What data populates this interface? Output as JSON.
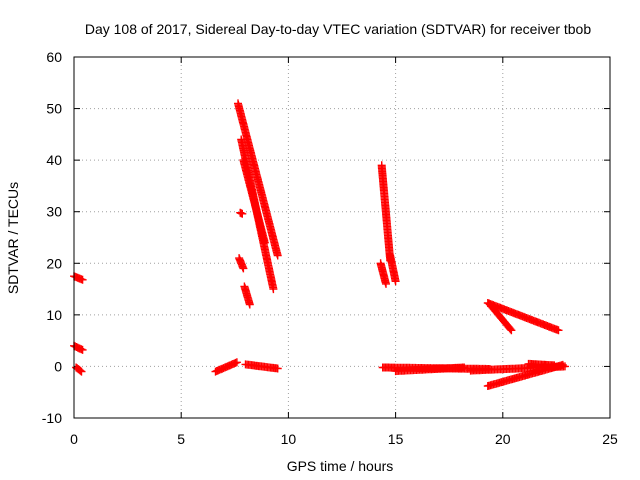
{
  "chart_data": {
    "type": "scatter",
    "title": "Day 108 of 2017, Sidereal Day-to-day VTEC variation (SDTVAR) for receiver tbob",
    "xlabel": "GPS time / hours",
    "ylabel": "SDTVAR / TECUs",
    "xlim": [
      0,
      25
    ],
    "ylim": [
      -10,
      60
    ],
    "x_ticks": [
      "0",
      "5",
      "10",
      "15",
      "20",
      "25"
    ],
    "y_ticks": [
      "-10",
      "0",
      "10",
      "20",
      "30",
      "40",
      "50",
      "60"
    ],
    "grid": true,
    "marker": "+",
    "color": "#ff0000",
    "series": [
      {
        "segments": [
          {
            "x0": 0.0,
            "x1": 0.4,
            "y0": 17.5,
            "y1": 16.8
          },
          {
            "x0": 0.0,
            "x1": 0.4,
            "y0": 4.0,
            "y1": 3.2
          },
          {
            "x0": 0.1,
            "x1": 0.35,
            "y0": -0.2,
            "y1": -1.0
          },
          {
            "x0": 6.6,
            "x1": 7.6,
            "y0": -1.0,
            "y1": 0.8
          },
          {
            "x0": 8.0,
            "x1": 9.5,
            "y0": 0.4,
            "y1": -0.4
          },
          {
            "x0": 7.65,
            "x1": 9.5,
            "y0": 51.0,
            "y1": 21.5
          },
          {
            "x0": 7.8,
            "x1": 9.3,
            "y0": 44.0,
            "y1": 15.0
          },
          {
            "x0": 7.9,
            "x1": 8.9,
            "y0": 40.0,
            "y1": 24.0
          },
          {
            "x0": 7.7,
            "x1": 7.9,
            "y0": 21.0,
            "y1": 19.0
          },
          {
            "x0": 7.75,
            "x1": 7.85,
            "y0": 29.8,
            "y1": 29.6
          },
          {
            "x0": 7.95,
            "x1": 8.2,
            "y0": 15.5,
            "y1": 12.0
          },
          {
            "x0": 14.35,
            "x1": 14.75,
            "y0": 39.0,
            "y1": 20.5
          },
          {
            "x0": 14.3,
            "x1": 14.55,
            "y0": 20.0,
            "y1": 16.0
          },
          {
            "x0": 14.75,
            "x1": 15.0,
            "y0": 21.5,
            "y1": 16.5
          },
          {
            "x0": 14.4,
            "x1": 19.4,
            "y0": -0.2,
            "y1": -0.5
          },
          {
            "x0": 15.0,
            "x1": 18.2,
            "y0": -0.9,
            "y1": -0.2
          },
          {
            "x0": 19.3,
            "x1": 22.6,
            "y0": 12.3,
            "y1": 7.0
          },
          {
            "x0": 19.4,
            "x1": 20.4,
            "y0": 12.0,
            "y1": 7.0
          },
          {
            "x0": 19.3,
            "x1": 22.8,
            "y0": -3.8,
            "y1": 0.3
          },
          {
            "x0": 18.5,
            "x1": 22.9,
            "y0": -0.8,
            "y1": 0.0
          },
          {
            "x0": 21.2,
            "x1": 22.4,
            "y0": 0.5,
            "y1": 0.2
          }
        ]
      }
    ]
  }
}
